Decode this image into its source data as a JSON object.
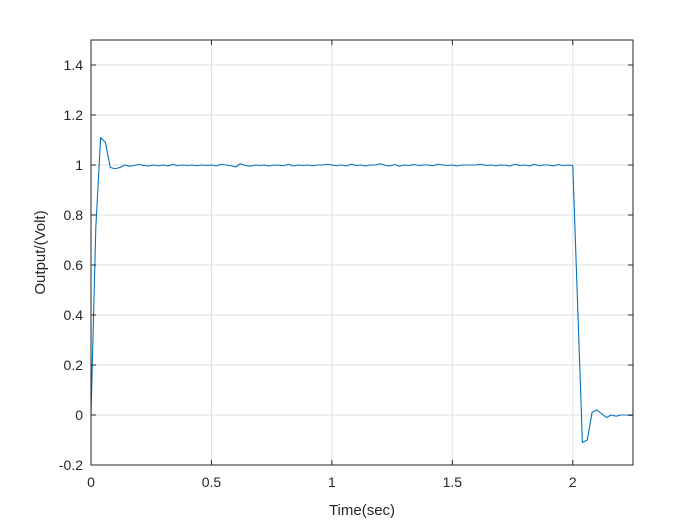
{
  "chart_data": {
    "type": "line",
    "title": "",
    "xlabel": "Time(sec)",
    "ylabel": "Output/(Volt)",
    "xlim": [
      0,
      2.25
    ],
    "ylim": [
      -0.2,
      1.5
    ],
    "xticks": [
      0,
      0.5,
      1,
      1.5,
      2
    ],
    "xtick_labels": [
      "0",
      "0.5",
      "1",
      "1.5",
      "2"
    ],
    "yticks": [
      -0.2,
      0,
      0.2,
      0.4,
      0.6,
      0.8,
      1,
      1.2,
      1.4
    ],
    "ytick_labels": [
      "-0.2",
      "0",
      "0.2",
      "0.4",
      "0.6",
      "0.8",
      "1",
      "1.2",
      "1.4"
    ],
    "grid": true,
    "colors": {
      "series": "#0072bd",
      "grid": "#e1e1e1",
      "axes": "#262626"
    },
    "series": [
      {
        "name": "",
        "x": [
          0,
          0.02,
          0.04,
          0.06,
          0.08,
          0.1,
          0.12,
          0.14,
          0.16,
          0.18,
          0.2,
          0.22,
          0.24,
          0.26,
          0.28,
          0.3,
          0.32,
          0.34,
          0.36,
          0.38,
          0.4,
          0.42,
          0.44,
          0.46,
          0.48,
          0.5,
          0.52,
          0.54,
          0.56,
          0.58,
          0.6,
          0.62,
          0.64,
          0.66,
          0.68,
          0.7,
          0.72,
          0.74,
          0.76,
          0.78,
          0.8,
          0.82,
          0.84,
          0.86,
          0.88,
          0.9,
          0.92,
          0.94,
          0.96,
          0.98,
          1.0,
          1.02,
          1.04,
          1.06,
          1.08,
          1.1,
          1.12,
          1.14,
          1.16,
          1.18,
          1.2,
          1.22,
          1.24,
          1.26,
          1.28,
          1.3,
          1.32,
          1.34,
          1.36,
          1.38,
          1.4,
          1.42,
          1.44,
          1.46,
          1.48,
          1.5,
          1.52,
          1.54,
          1.56,
          1.58,
          1.6,
          1.62,
          1.64,
          1.66,
          1.68,
          1.7,
          1.72,
          1.74,
          1.76,
          1.78,
          1.8,
          1.82,
          1.84,
          1.86,
          1.88,
          1.9,
          1.92,
          1.94,
          1.96,
          1.98,
          2.0,
          2.04,
          2.06,
          2.08,
          2.1,
          2.12,
          2.14,
          2.16,
          2.18,
          2.2,
          2.22,
          2.24,
          2.25
        ],
        "y": [
          0,
          0.75,
          1.11,
          1.09,
          0.99,
          0.985,
          0.99,
          1.0,
          0.995,
          0.998,
          1.002,
          0.998,
          0.996,
          1.0,
          0.997,
          1.0,
          0.996,
          1.003,
          0.997,
          1.0,
          0.998,
          1.0,
          0.997,
          1.0,
          0.998,
          1.0,
          0.996,
          1.003,
          1.0,
          0.997,
          0.992,
          1.005,
          0.998,
          0.995,
          1.0,
          0.998,
          1.0,
          0.996,
          1.0,
          0.999,
          0.997,
          1.003,
          0.996,
          1.0,
          0.998,
          1.0,
          0.997,
          1.0,
          1.0,
          1.003,
          1.0,
          0.997,
          1.0,
          0.996,
          1.003,
          0.998,
          1.0,
          0.996,
          1.0,
          1.0,
          1.005,
          0.999,
          0.996,
          1.002,
          0.995,
          1.0,
          0.998,
          1.002,
          0.998,
          1.0,
          1.0,
          0.997,
          1.003,
          1.0,
          0.998,
          1.0,
          0.996,
          1.0,
          1.0,
          1.0,
          1.0,
          1.003,
          0.998,
          1.0,
          0.997,
          1.0,
          0.999,
          0.996,
          1.003,
          0.998,
          1.0,
          0.996,
          1.003,
          0.997,
          1.0,
          1.0,
          0.996,
          1.002,
          0.997,
          1.0,
          0.998,
          -0.11,
          -0.1,
          0.01,
          0.02,
          0.005,
          -0.01,
          0.0,
          -0.005,
          0.0,
          0.0,
          -0.002,
          0.0
        ]
      }
    ]
  }
}
